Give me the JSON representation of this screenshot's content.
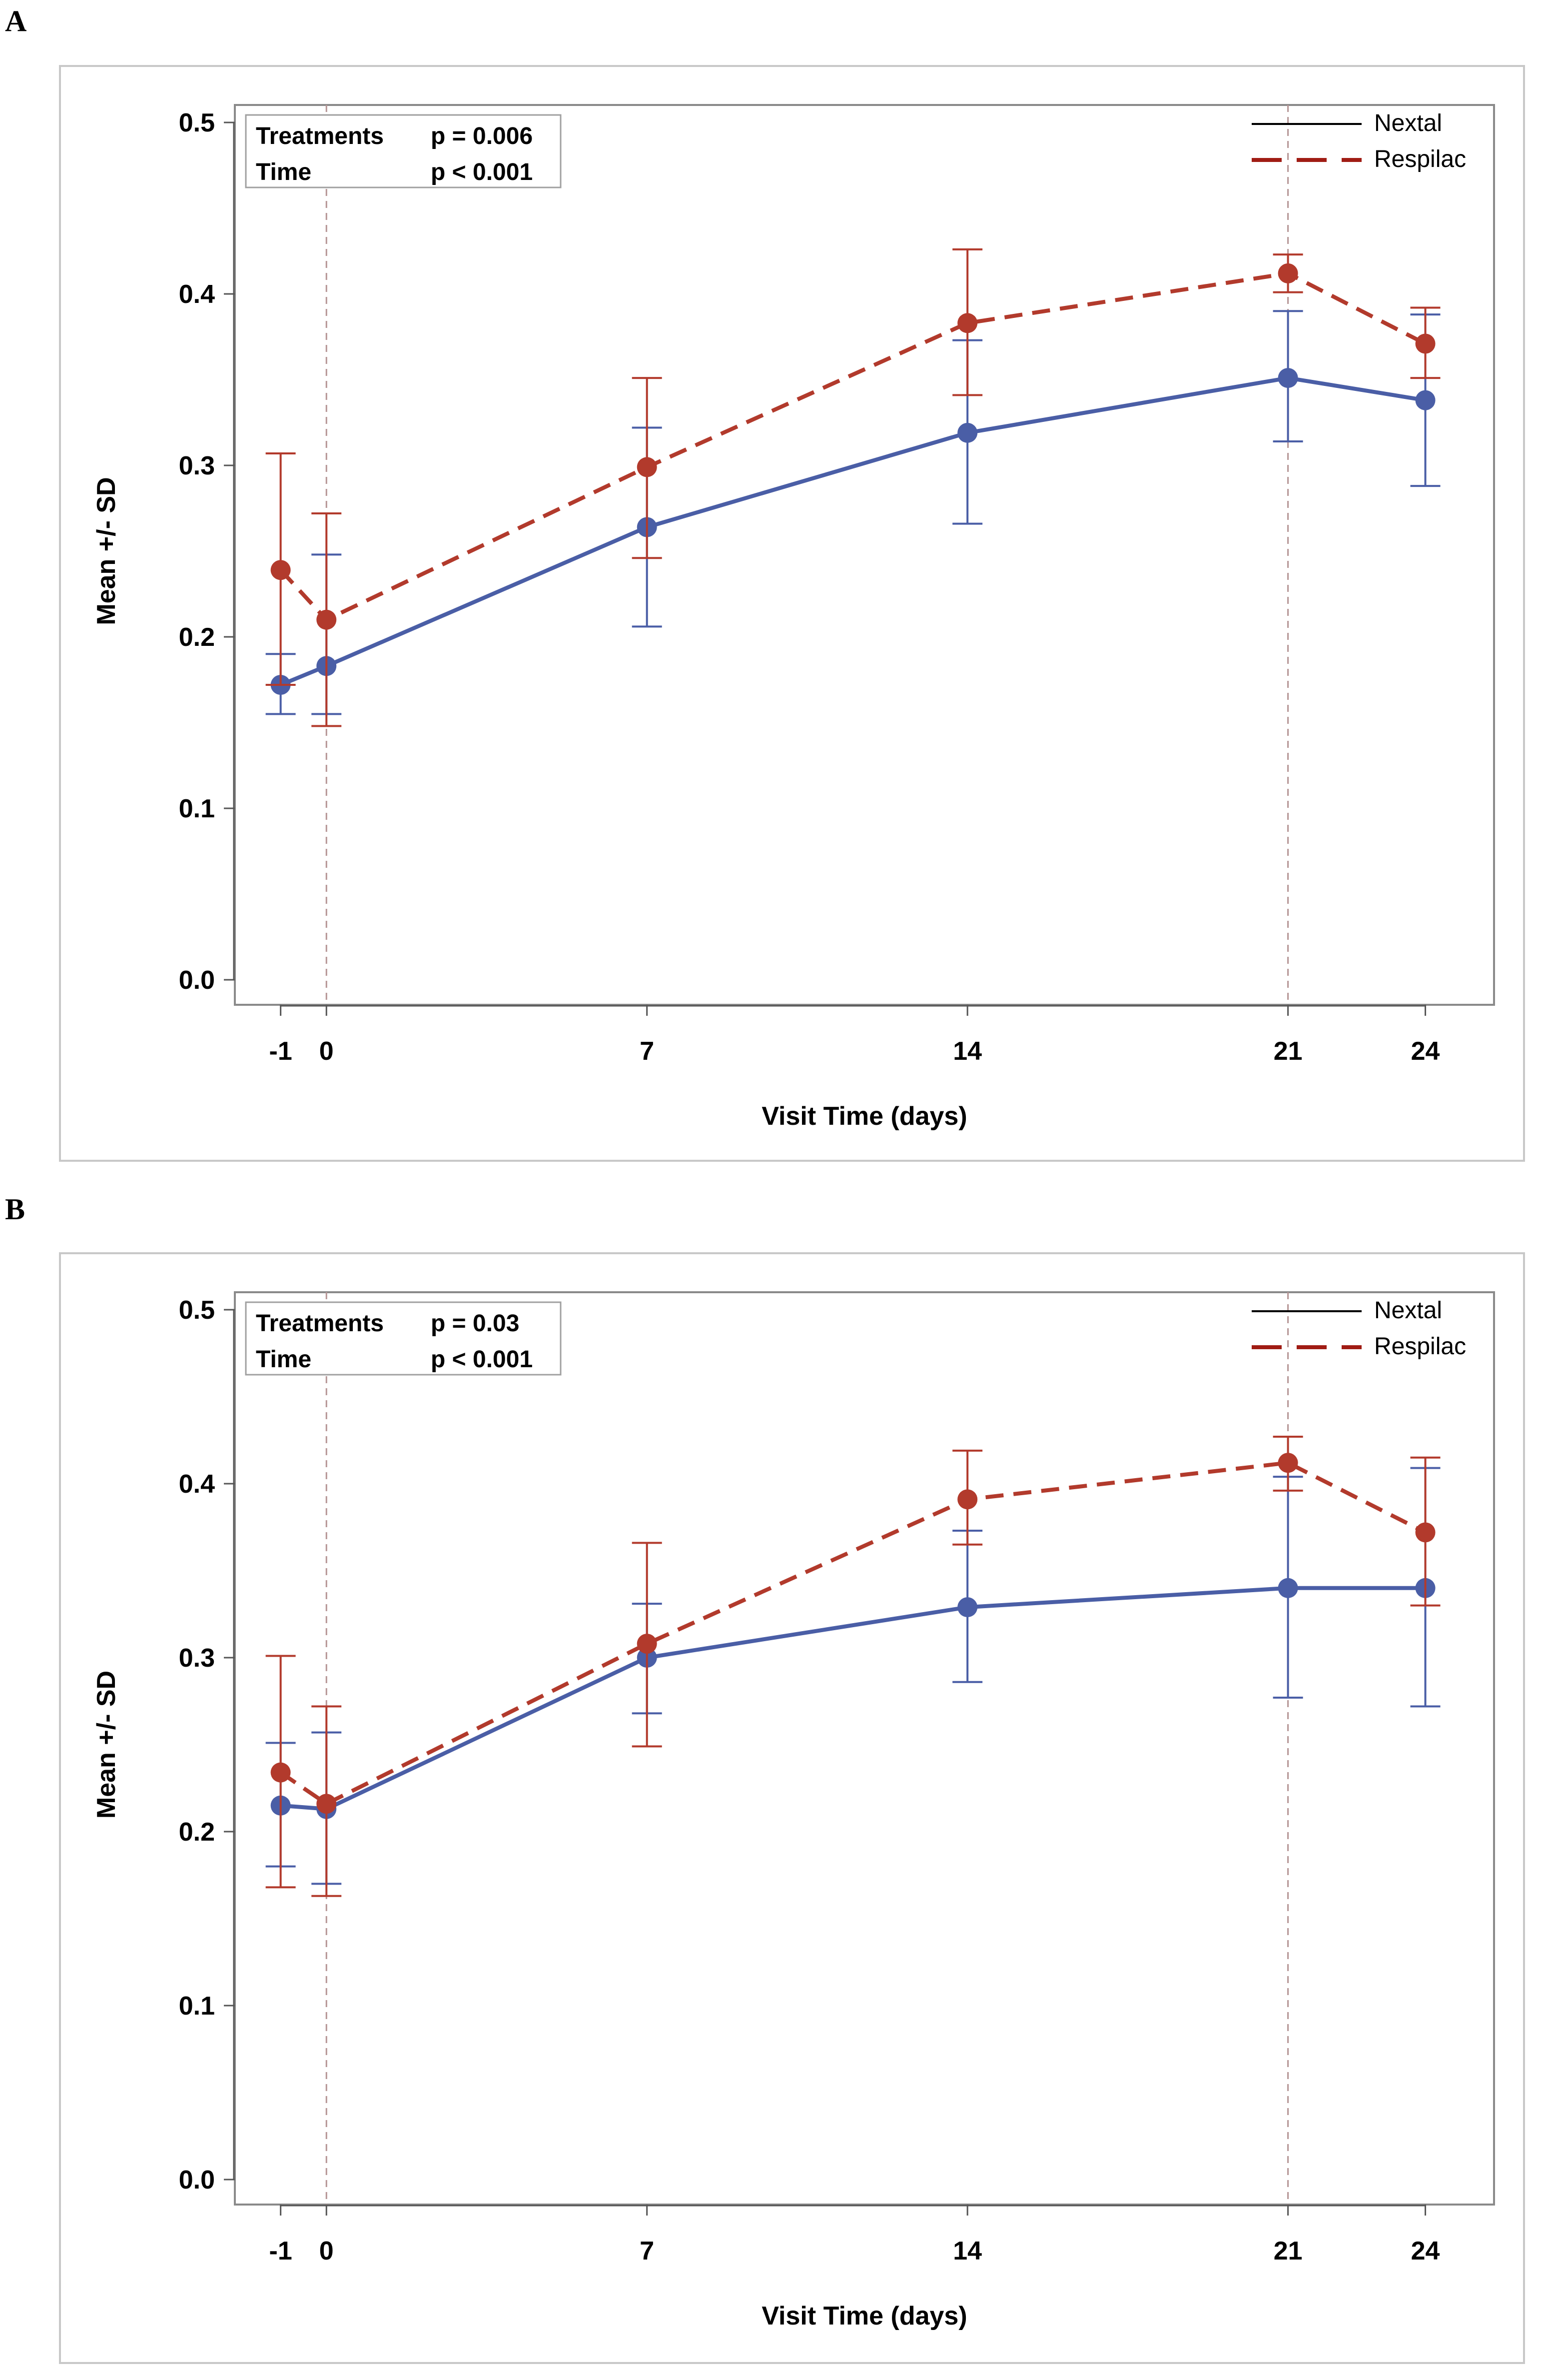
{
  "colors": {
    "Nextal": "#4a5ea6",
    "Respilac": "#b23a2c",
    "legend_nextal": "#000000",
    "legend_respilac": "#a01c14"
  },
  "chart_data": [
    {
      "panel_label": "A",
      "type": "line",
      "xlabel": "Visit Time (days)",
      "ylabel": "Mean +/- SD",
      "x": [
        -1,
        0,
        7,
        14,
        21,
        24
      ],
      "x_tick_labels": [
        "-1",
        "0",
        "7",
        "14",
        "21",
        "24"
      ],
      "xlim": [
        -2,
        25.5
      ],
      "ylim": [
        0,
        0.5
      ],
      "y_ticks": [
        0.0,
        0.1,
        0.2,
        0.3,
        0.4,
        0.5
      ],
      "y_tick_labels": [
        "0.0",
        "0.1",
        "0.2",
        "0.3",
        "0.4",
        "0.5"
      ],
      "reference_lines_x": [
        0,
        21
      ],
      "stats": [
        {
          "label": "Treatments",
          "value": "p  = 0.006"
        },
        {
          "label": "Time",
          "value": "p  < 0.001"
        }
      ],
      "legend": [
        "Nextal",
        "Respilac"
      ],
      "series": [
        {
          "name": "Nextal",
          "style": "solid",
          "mean": [
            0.172,
            0.183,
            0.264,
            0.319,
            0.351,
            0.338
          ],
          "lower": [
            0.155,
            0.155,
            0.206,
            0.266,
            0.314,
            0.288
          ],
          "upper": [
            0.19,
            0.248,
            0.322,
            0.373,
            0.39,
            0.388
          ]
        },
        {
          "name": "Respilac",
          "style": "dashed",
          "mean": [
            0.239,
            0.21,
            0.299,
            0.383,
            0.412,
            0.371
          ],
          "lower": [
            0.172,
            0.148,
            0.246,
            0.341,
            0.401,
            0.351
          ],
          "upper": [
            0.307,
            0.272,
            0.351,
            0.426,
            0.423,
            0.392
          ]
        }
      ]
    },
    {
      "panel_label": "B",
      "type": "line",
      "xlabel": "Visit Time (days)",
      "ylabel": "Mean +/- SD",
      "x": [
        -1,
        0,
        7,
        14,
        21,
        24
      ],
      "x_tick_labels": [
        "-1",
        "0",
        "7",
        "14",
        "21",
        "24"
      ],
      "xlim": [
        -2,
        25.5
      ],
      "ylim": [
        0,
        0.5
      ],
      "y_ticks": [
        0.0,
        0.1,
        0.2,
        0.3,
        0.4,
        0.5
      ],
      "y_tick_labels": [
        "0.0",
        "0.1",
        "0.2",
        "0.3",
        "0.4",
        "0.5"
      ],
      "reference_lines_x": [
        0,
        21
      ],
      "stats": [
        {
          "label": "Treatments",
          "value": "p  = 0.03"
        },
        {
          "label": "Time",
          "value": "p  < 0.001"
        }
      ],
      "legend": [
        "Nextal",
        "Respilac"
      ],
      "series": [
        {
          "name": "Nextal",
          "style": "solid",
          "mean": [
            0.215,
            0.213,
            0.3,
            0.329,
            0.34,
            0.34
          ],
          "lower": [
            0.18,
            0.17,
            0.268,
            0.286,
            0.277,
            0.272
          ],
          "upper": [
            0.251,
            0.257,
            0.331,
            0.373,
            0.404,
            0.409
          ]
        },
        {
          "name": "Respilac",
          "style": "dashed",
          "mean": [
            0.234,
            0.216,
            0.308,
            0.391,
            0.412,
            0.372
          ],
          "lower": [
            0.168,
            0.163,
            0.249,
            0.365,
            0.396,
            0.33
          ],
          "upper": [
            0.301,
            0.272,
            0.366,
            0.419,
            0.427,
            0.415
          ]
        }
      ]
    }
  ]
}
